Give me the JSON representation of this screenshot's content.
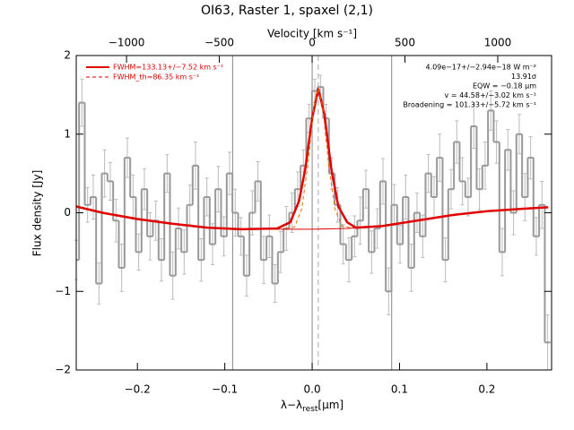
{
  "chart_data": {
    "type": "line",
    "title": "OI63, Raster 1, spaxel (2,1)",
    "xlabel": {
      "text": "λ−λ",
      "sub": "rest",
      "unit": "[μm]"
    },
    "x2label": "Velocity [km s⁻¹]",
    "ylabel": "Flux density [Jy]",
    "xlim": [
      -0.27,
      0.274
    ],
    "xticks": [
      {
        "value": -0.2,
        "label": "−0.2"
      },
      {
        "value": -0.1,
        "label": "−0.1"
      },
      {
        "value": 0,
        "label": "0.0"
      },
      {
        "value": 0.1,
        "label": "0.1"
      },
      {
        "value": 0.2,
        "label": "0.2"
      }
    ],
    "x2lim": [
      -1271,
      1290
    ],
    "x2ticks": [
      {
        "value": -1000,
        "label": "−1000"
      },
      {
        "value": -500,
        "label": "−500"
      },
      0,
      500,
      1000
    ],
    "ylim": [
      -2,
      2
    ],
    "yticks": [
      {
        "value": -2,
        "label": "−2"
      },
      {
        "value": -1,
        "label": "−1"
      },
      0,
      1,
      2
    ],
    "vlines": [
      -0.091,
      0,
      0.091
    ],
    "center_line": 0.007,
    "annotations": [
      "4.09e−17+/−2.94e−18 W m⁻²",
      "13.91σ",
      "EQW = −0.18 μm",
      "v = 44.58+/−3.02 km s⁻¹",
      "Broadening = 101.33+/−5.72 km s⁻¹"
    ],
    "spectrum": {
      "color": "#999999",
      "x": [
        -0.27,
        -0.2635,
        -0.257,
        -0.2505,
        -0.244,
        -0.2375,
        -0.231,
        -0.2245,
        -0.218,
        -0.2115,
        -0.205,
        -0.1985,
        -0.192,
        -0.1855,
        -0.179,
        -0.1725,
        -0.166,
        -0.1595,
        -0.153,
        -0.1465,
        -0.14,
        -0.1335,
        -0.127,
        -0.1205,
        -0.114,
        -0.1075,
        -0.101,
        -0.0945,
        -0.088,
        -0.0815,
        -0.075,
        -0.0685,
        -0.062,
        -0.0555,
        -0.049,
        -0.0425,
        -0.036,
        -0.0295,
        -0.023,
        -0.0165,
        -0.01,
        -0.0035,
        0.003,
        0.0095,
        0.016,
        0.0225,
        0.029,
        0.0355,
        0.042,
        0.0485,
        0.055,
        0.0615,
        0.068,
        0.0745,
        0.081,
        0.0875,
        0.094,
        0.1005,
        0.107,
        0.1135,
        0.12,
        0.1265,
        0.133,
        0.1395,
        0.146,
        0.1525,
        0.159,
        0.1655,
        0.172,
        0.1785,
        0.185,
        0.1915,
        0.198,
        0.2045,
        0.211,
        0.2175,
        0.224,
        0.2305,
        0.237,
        0.2435,
        0.25,
        0.2565,
        0.263,
        0.2695
      ],
      "values": [
        -0.6,
        1.4,
        0.1,
        0.2,
        -0.9,
        0.5,
        0.4,
        -0.1,
        -0.7,
        0.7,
        0.2,
        -0.5,
        0.3,
        -0.3,
        -0.1,
        -0.6,
        0.5,
        -0.8,
        -0.2,
        -0.5,
        0.1,
        0.6,
        -0.6,
        0.2,
        -0.4,
        0.3,
        -0.3,
        0.5,
        0,
        -0.3,
        -0.8,
        0,
        0.4,
        -0.6,
        -0.3,
        -0.9,
        -0.5,
        -0.2,
        0,
        0.3,
        0.6,
        1.2,
        1.55,
        1.6,
        1.2,
        0.5,
        0.1,
        -0.4,
        -0.6,
        -0.3,
        -0.1,
        0.3,
        -0.5,
        -0.2,
        0.4,
        -1,
        0.1,
        -0.4,
        0.2,
        -0.7,
        0,
        -0.3,
        0.5,
        0.2,
        0.7,
        -0.6,
        0.3,
        0.9,
        0.4,
        0.2,
        1.1,
        0.3,
        0.6,
        1.3,
        0.9,
        -0.5,
        0.8,
        0,
        1,
        0.2,
        0.7,
        -0.3,
        0.1,
        -1.65
      ],
      "errors": [
        0.25,
        0.3,
        0.22,
        0.28,
        0.26,
        0.3,
        0.24,
        0.27,
        0.3,
        0.25,
        0.28,
        0.23,
        0.26,
        0.3,
        0.25,
        0.27,
        0.24,
        0.3,
        0.26,
        0.28,
        0.25,
        0.3,
        0.27,
        0.24,
        0.26,
        0.29,
        0.25,
        0.27,
        0.3,
        0.24,
        0.26,
        0.28,
        0.25,
        0.3,
        0.27,
        0.24,
        0.26,
        0.28,
        0.25,
        0.22,
        0.2,
        0.18,
        0.15,
        0.15,
        0.18,
        0.2,
        0.22,
        0.25,
        0.28,
        0.26,
        0.3,
        0.24,
        0.27,
        0.25,
        0.29,
        0.3,
        0.26,
        0.24,
        0.28,
        0.3,
        0.25,
        0.27,
        0.24,
        0.26,
        0.3,
        0.28,
        0.25,
        0.27,
        0.3,
        0.24,
        0.28,
        0.26,
        0.3,
        0.25,
        0.27,
        0.3,
        0.26,
        0.28,
        0.25,
        0.3,
        0.27,
        0.24,
        0.3,
        0.35
      ]
    },
    "series": [
      {
        "name": "FWHM=133.13+/−7.52 km s⁻¹",
        "color": "#e00000",
        "style": "solid",
        "width": 2.5,
        "x": [
          -0.27,
          -0.24,
          -0.2,
          -0.16,
          -0.12,
          -0.08,
          -0.04,
          -0.025,
          -0.015,
          -0.008,
          0,
          0.007,
          0.014,
          0.022,
          0.03,
          0.04,
          0.05,
          0.08,
          0.12,
          0.16,
          0.2,
          0.24,
          0.27
        ],
        "values": [
          0.08,
          0,
          -0.08,
          -0.14,
          -0.19,
          -0.21,
          -0.2,
          -0.12,
          0.15,
          0.55,
          1.2,
          1.58,
          1.25,
          0.55,
          0.08,
          -0.12,
          -0.19,
          -0.17,
          -0.1,
          -0.03,
          0.02,
          0.05,
          0.07
        ]
      },
      {
        "name": "FWHM_th=86.35 km s⁻¹",
        "color": "#e07000",
        "style": "dashed",
        "width": 1,
        "x": [
          -0.03,
          -0.02,
          -0.012,
          -0.005,
          0.002,
          0.007,
          0.012,
          0.019,
          0.026,
          0.034,
          0.044
        ],
        "values": [
          -0.2,
          -0.18,
          0.05,
          0.6,
          1.35,
          1.58,
          1.35,
          0.6,
          0.05,
          -0.17,
          -0.19
        ]
      },
      {
        "name": null,
        "color": "#e00000",
        "style": "thin",
        "width": 1,
        "x": [
          -0.27,
          -0.24,
          -0.2,
          -0.16,
          -0.12,
          -0.08,
          -0.04,
          0,
          0.04,
          0.08,
          0.12,
          0.16,
          0.2,
          0.24,
          0.27
        ],
        "values": [
          0.08,
          0,
          -0.08,
          -0.14,
          -0.19,
          -0.21,
          -0.21,
          -0.21,
          -0.2,
          -0.17,
          -0.1,
          -0.03,
          0.02,
          0.05,
          0.07
        ]
      }
    ]
  }
}
